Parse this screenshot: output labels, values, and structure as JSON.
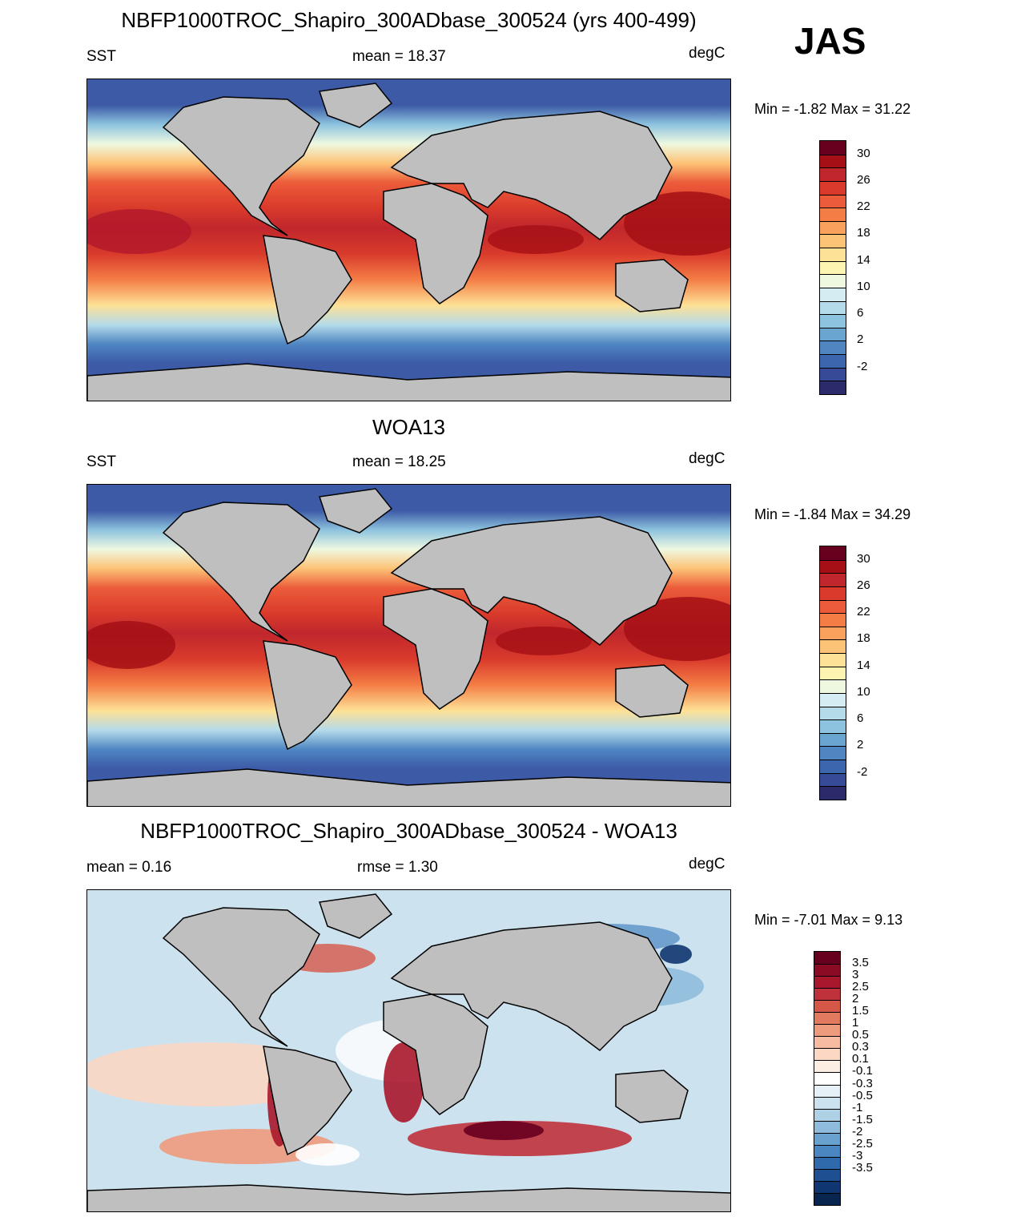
{
  "season": "JAS",
  "panels": [
    {
      "title": "NBFP1000TROC_Shapiro_300ADbase_300524 (yrs 400-499)",
      "left_label": "SST",
      "center_label": "mean =  18.37",
      "units": "degC",
      "minmax": "Min =  -1.82 Max =  31.22",
      "colorbar": {
        "labels": [
          "30",
          "26",
          "22",
          "18",
          "14",
          "10",
          "6",
          "2",
          "-2"
        ],
        "colors": [
          "#67001f",
          "#a50f15",
          "#c0272d",
          "#d93a2b",
          "#ec5c3a",
          "#f47d45",
          "#f9a25d",
          "#fcc276",
          "#fde196",
          "#fef4b2",
          "#eef8e0",
          "#d5ecf2",
          "#b4dbea",
          "#8dc3df",
          "#6aa5d0",
          "#4f86c2",
          "#3c66ae",
          "#374a98",
          "#2b2a6b"
        ]
      }
    },
    {
      "title": "WOA13",
      "left_label": "SST",
      "center_label": "mean =  18.25",
      "units": "degC",
      "minmax": "Min =  -1.84 Max =  34.29",
      "colorbar": {
        "labels": [
          "30",
          "26",
          "22",
          "18",
          "14",
          "10",
          "6",
          "2",
          "-2"
        ],
        "colors": [
          "#67001f",
          "#a50f15",
          "#c0272d",
          "#d93a2b",
          "#ec5c3a",
          "#f47d45",
          "#f9a25d",
          "#fcc276",
          "#fde196",
          "#fef4b2",
          "#eef8e0",
          "#d5ecf2",
          "#b4dbea",
          "#8dc3df",
          "#6aa5d0",
          "#4f86c2",
          "#3c66ae",
          "#374a98",
          "#2b2a6b"
        ]
      }
    },
    {
      "title": "NBFP1000TROC_Shapiro_300ADbase_300524 - WOA13",
      "left_label": "mean =   0.16",
      "center_label": "rmse =   1.30",
      "units": "degC",
      "minmax": "Min =  -7.01 Max =   9.13",
      "colorbar": {
        "labels": [
          "3.5",
          "3",
          "2.5",
          "2",
          "1.5",
          "1",
          "0.5",
          "0.3",
          "0.1",
          "-0.1",
          "-0.3",
          "-0.5",
          "-1",
          "-1.5",
          "-2",
          "-2.5",
          "-3",
          "-3.5"
        ],
        "colors": [
          "#67001f",
          "#8b0a24",
          "#a8172b",
          "#c0323b",
          "#d45748",
          "#e27a5f",
          "#ee9b7d",
          "#f7bba1",
          "#fbd7c4",
          "#fdeee4",
          "#ffffff",
          "#e5f0f7",
          "#cde2ef",
          "#afd1e6",
          "#8fbcdc",
          "#6aa2cf",
          "#4a86c0",
          "#2f6aad",
          "#1d4f91",
          "#0f3670",
          "#08254f"
        ]
      }
    }
  ]
}
